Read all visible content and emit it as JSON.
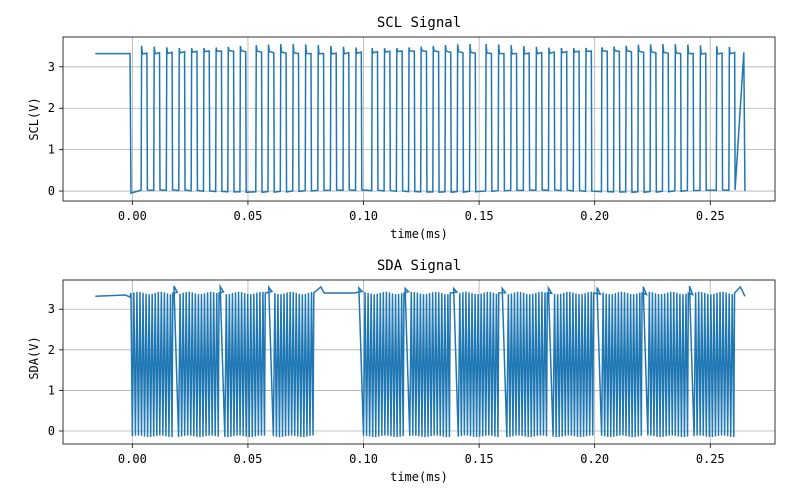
{
  "chart_data": [
    {
      "type": "line",
      "title": "SCL Signal",
      "xlabel": "time(ms)",
      "ylabel": "SCL(V)",
      "xlim": [
        -0.03,
        0.278
      ],
      "ylim": [
        -0.24,
        3.72
      ],
      "xticks": [
        0.0,
        0.05,
        0.1,
        0.15,
        0.2,
        0.25
      ],
      "xtick_labels": [
        "0.00",
        "0.05",
        "0.10",
        "0.15",
        "0.20",
        "0.25"
      ],
      "yticks": [
        0,
        1,
        2,
        3
      ],
      "ytick_labels": [
        "0",
        "1",
        "2",
        "3"
      ],
      "grid": true,
      "color": "#1f77b4",
      "series": [
        {
          "name": "",
          "signal": {
            "kind": "scl",
            "t_start": -0.016,
            "t_end": 0.265,
            "idle_level": 3.32,
            "first_fall": -0.001,
            "high_level": 3.35,
            "low_level": 0.0,
            "overshoot": 3.5,
            "undershoot": -0.05,
            "period": 0.00535,
            "high_width": 0.0025,
            "clock_start": 0.004,
            "gap_after_clocks": 9,
            "gap_extra": 0.0016,
            "end_level": 0.0
          }
        }
      ]
    },
    {
      "type": "line",
      "title": "SDA Signal",
      "xlabel": "time(ms)",
      "ylabel": "SDA(V)",
      "xlim": [
        -0.03,
        0.278
      ],
      "ylim": [
        -0.32,
        3.72
      ],
      "xticks": [
        0.0,
        0.05,
        0.1,
        0.15,
        0.2,
        0.25
      ],
      "xtick_labels": [
        "0.00",
        "0.05",
        "0.10",
        "0.15",
        "0.20",
        "0.25"
      ],
      "yticks": [
        0,
        1,
        2,
        3
      ],
      "ytick_labels": [
        "0",
        "1",
        "2",
        "3"
      ],
      "grid": true,
      "color": "#1f77b4",
      "series": [
        {
          "name": "",
          "signal": {
            "kind": "sda",
            "t_start": -0.016,
            "t_end": 0.265,
            "idle_level": 3.32,
            "first_fall": -0.001,
            "high_level": 3.4,
            "low_level": -0.13,
            "overshoot": 3.55,
            "toggle_period": 0.00132,
            "burst_len": 0.0175,
            "burst_gap": 0.003,
            "burst_starts": [
              0.0,
              0.02,
              0.04,
              0.061,
              0.1,
              0.12,
              0.141,
              0.162,
              0.182,
              0.203,
              0.223,
              0.243
            ],
            "end_level": 3.32
          }
        }
      ]
    }
  ]
}
